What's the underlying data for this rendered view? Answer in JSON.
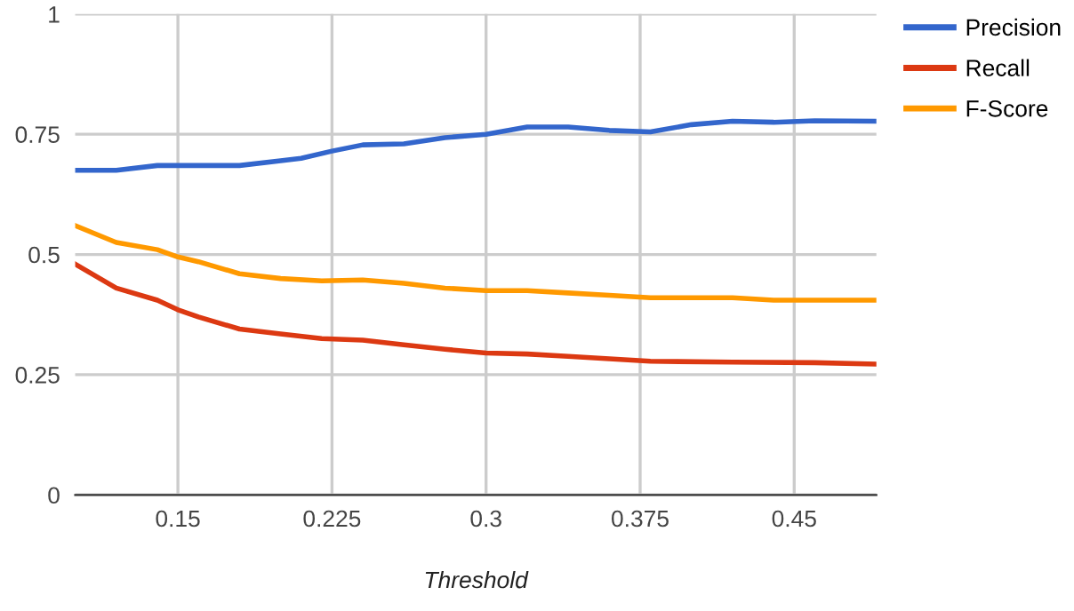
{
  "chart_data": {
    "type": "line",
    "xlabel": "Threshold",
    "xlim": [
      0.1,
      0.49
    ],
    "ylim": [
      0,
      1
    ],
    "xticks": [
      0.15,
      0.225,
      0.3,
      0.375,
      0.45
    ],
    "yticks": [
      0,
      0.25,
      0.5,
      0.75,
      1
    ],
    "grid": true,
    "legend": "top right",
    "marker": "none",
    "line_style": "solid",
    "series": [
      {
        "name": "Precision",
        "color": "#3366cc",
        "x": [
          0.1,
          0.12,
          0.14,
          0.15,
          0.18,
          0.2,
          0.21,
          0.225,
          0.24,
          0.26,
          0.28,
          0.3,
          0.32,
          0.34,
          0.36,
          0.38,
          0.4,
          0.42,
          0.44,
          0.46,
          0.49
        ],
        "values": [
          0.675,
          0.675,
          0.685,
          0.685,
          0.685,
          0.695,
          0.7,
          0.715,
          0.728,
          0.73,
          0.743,
          0.75,
          0.765,
          0.765,
          0.758,
          0.755,
          0.77,
          0.777,
          0.775,
          0.778,
          0.777
        ]
      },
      {
        "name": "Recall",
        "color": "#dc3912",
        "x": [
          0.1,
          0.12,
          0.14,
          0.15,
          0.16,
          0.18,
          0.2,
          0.22,
          0.24,
          0.26,
          0.28,
          0.3,
          0.32,
          0.34,
          0.36,
          0.38,
          0.42,
          0.46,
          0.49
        ],
        "values": [
          0.48,
          0.43,
          0.405,
          0.385,
          0.37,
          0.345,
          0.335,
          0.325,
          0.322,
          0.312,
          0.303,
          0.295,
          0.293,
          0.288,
          0.283,
          0.278,
          0.276,
          0.275,
          0.272
        ]
      },
      {
        "name": "F-Score",
        "color": "#ff9900",
        "x": [
          0.1,
          0.12,
          0.14,
          0.15,
          0.16,
          0.18,
          0.2,
          0.22,
          0.24,
          0.26,
          0.28,
          0.3,
          0.32,
          0.34,
          0.36,
          0.38,
          0.42,
          0.44,
          0.49
        ],
        "values": [
          0.56,
          0.525,
          0.51,
          0.495,
          0.485,
          0.46,
          0.45,
          0.445,
          0.447,
          0.44,
          0.43,
          0.425,
          0.425,
          0.42,
          0.415,
          0.41,
          0.41,
          0.405,
          0.405
        ]
      }
    ]
  }
}
